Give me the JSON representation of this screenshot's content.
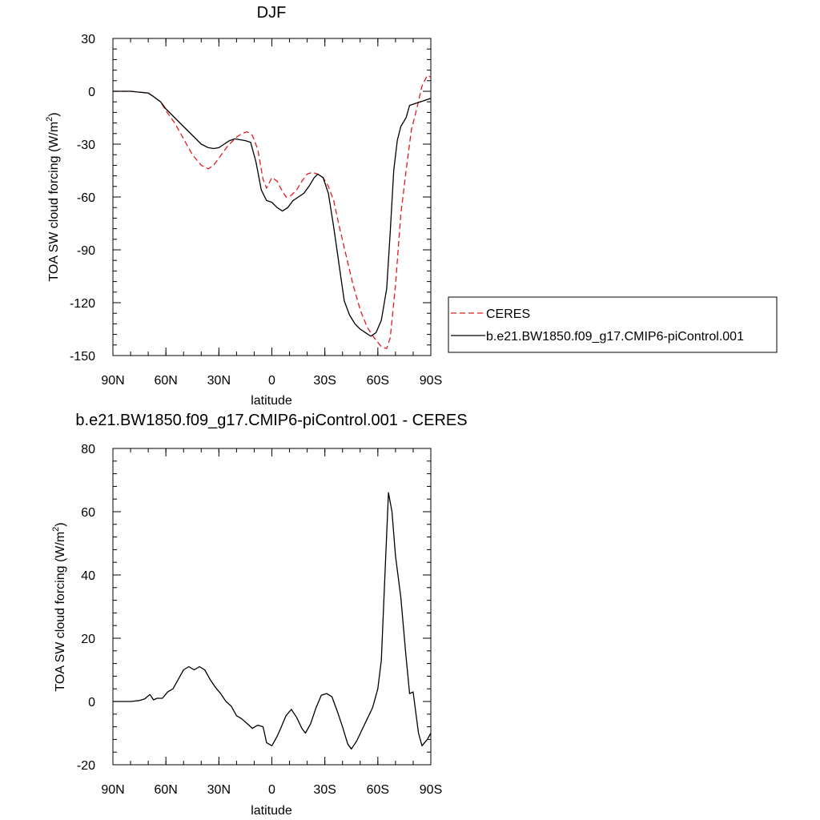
{
  "chart_data": [
    {
      "type": "line",
      "title": "DJF",
      "xlabel": "latitude",
      "ylabel": "TOA SW cloud forcing (W/m",
      "ylabel_sup": "2",
      "ylabel_end": ")",
      "xlim": [
        -90,
        90
      ],
      "ylim": [
        -150,
        30
      ],
      "xticks": [
        -90,
        -60,
        -30,
        0,
        30,
        60,
        90
      ],
      "xtick_labels": [
        "90N",
        "60N",
        "30N",
        "0",
        "30S",
        "60S",
        "90S"
      ],
      "yticks": [
        30,
        0,
        -30,
        -60,
        -90,
        -120,
        -150
      ],
      "ytick_labels": [
        "30",
        "0",
        "-30",
        "-60",
        "-90",
        "-120",
        "-150"
      ],
      "grid": false,
      "legend_position": "right",
      "series": [
        {
          "name": "CERES",
          "color": "#e41a1c",
          "dash": "dashed",
          "x": [
            -90,
            -85,
            -80,
            -75,
            -70,
            -67,
            -63,
            -60,
            -55,
            -50,
            -45,
            -40,
            -36,
            -33,
            -30,
            -25,
            -20,
            -17,
            -14,
            -11,
            -8,
            -5,
            -3,
            0,
            3,
            5,
            8,
            11,
            14,
            17,
            20,
            23,
            26,
            29,
            32,
            35,
            38,
            42,
            46,
            50,
            54,
            58,
            62,
            65,
            67,
            70,
            73,
            76,
            79,
            82,
            85,
            88,
            90
          ],
          "y": [
            0,
            0,
            0,
            -0.5,
            -1,
            -3,
            -6,
            -11,
            -18,
            -27,
            -36,
            -42,
            -44,
            -42,
            -38,
            -31,
            -26,
            -24,
            -23,
            -25,
            -33,
            -50,
            -55,
            -49,
            -51,
            -55,
            -60,
            -59,
            -56,
            -51,
            -47,
            -46,
            -47,
            -49,
            -54,
            -62,
            -76,
            -93,
            -110,
            -124,
            -134,
            -140,
            -145,
            -146,
            -140,
            -110,
            -70,
            -45,
            -22,
            -10,
            3,
            9,
            8
          ]
        },
        {
          "name": "b.e21.BW1850.f09_g17.CMIP6-piControl.001",
          "color": "#000000",
          "dash": "solid",
          "x": [
            -90,
            -85,
            -80,
            -75,
            -70,
            -67,
            -63,
            -60,
            -55,
            -50,
            -45,
            -40,
            -36,
            -33,
            -30,
            -27,
            -24,
            -21,
            -18,
            -15,
            -12,
            -9,
            -6,
            -3,
            0,
            3,
            6,
            9,
            12,
            15,
            18,
            21,
            24,
            26,
            29,
            32,
            35,
            38,
            41,
            44,
            47,
            50,
            53,
            56,
            59,
            62,
            65,
            67,
            69,
            71,
            73,
            76,
            78,
            81,
            84,
            87,
            90
          ],
          "y": [
            0,
            0,
            0,
            -0.5,
            -1,
            -3,
            -6,
            -10,
            -15,
            -20,
            -25,
            -30,
            -32,
            -32.5,
            -32,
            -30,
            -28,
            -27,
            -27.5,
            -28,
            -29,
            -40,
            -56,
            -62,
            -63,
            -66,
            -68,
            -66,
            -62,
            -60,
            -58,
            -54,
            -49,
            -47,
            -49,
            -58,
            -77,
            -98,
            -119,
            -127,
            -132,
            -135,
            -137,
            -139,
            -137,
            -130,
            -112,
            -80,
            -45,
            -28,
            -20,
            -15,
            -8,
            -7,
            -6,
            -5,
            -4
          ]
        }
      ]
    },
    {
      "type": "line",
      "title": "b.e21.BW1850.f09_g17.CMIP6-piControl.001 - CERES",
      "xlabel": "latitude",
      "ylabel": "TOA SW cloud forcing (W/m",
      "ylabel_sup": "2",
      "ylabel_end": ")",
      "xlim": [
        -90,
        90
      ],
      "ylim": [
        -20,
        80
      ],
      "xticks": [
        -90,
        -60,
        -30,
        0,
        30,
        60,
        90
      ],
      "xtick_labels": [
        "90N",
        "60N",
        "30N",
        "0",
        "30S",
        "60S",
        "90S"
      ],
      "yticks": [
        80,
        60,
        40,
        20,
        0,
        -20
      ],
      "ytick_labels": [
        "80",
        "60",
        "40",
        "20",
        "0",
        "-20"
      ],
      "grid": false,
      "series": [
        {
          "color": "#000000",
          "dash": "solid",
          "x": [
            -90,
            -85,
            -80,
            -75,
            -72,
            -69,
            -67,
            -65,
            -62,
            -59,
            -56,
            -53,
            -50,
            -47,
            -44,
            -41,
            -38,
            -35,
            -32,
            -29,
            -26,
            -23,
            -20,
            -17,
            -14,
            -11,
            -8,
            -5,
            -3,
            0,
            3,
            5,
            8,
            11,
            14,
            17,
            19,
            22,
            25,
            28,
            31,
            34,
            37,
            40,
            43,
            45,
            48,
            51,
            54,
            57,
            60,
            62,
            64,
            66,
            68,
            70,
            73,
            76,
            78,
            80,
            83,
            85,
            88,
            90
          ],
          "y": [
            0,
            0,
            0,
            0.3,
            0.8,
            2.2,
            0.5,
            1,
            1,
            3,
            4,
            7,
            10,
            11,
            10,
            11,
            10,
            7,
            4.5,
            2.5,
            0,
            -1.5,
            -4.5,
            -5.5,
            -7,
            -8.5,
            -7.5,
            -8,
            -13,
            -14,
            -11,
            -8.5,
            -4.5,
            -2.5,
            -5,
            -8.5,
            -10,
            -7,
            -2,
            2,
            2.5,
            1.5,
            -3,
            -8,
            -13.5,
            -15,
            -12.5,
            -9,
            -5.5,
            -2,
            4,
            13,
            40,
            66,
            60,
            46,
            33,
            14,
            2.5,
            3,
            -10,
            -14,
            -12,
            -10
          ]
        }
      ]
    }
  ]
}
